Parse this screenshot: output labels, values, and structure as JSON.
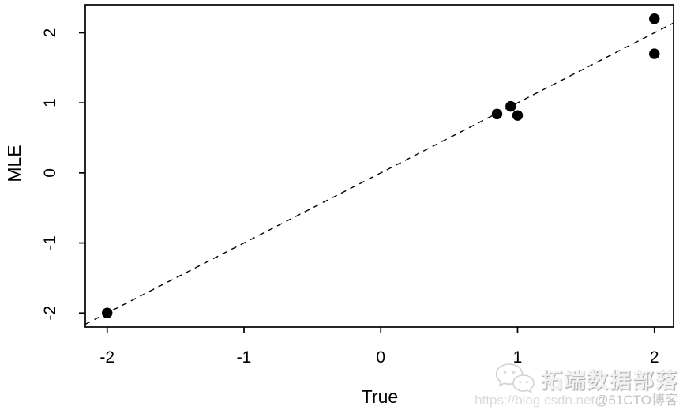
{
  "colors": {
    "foreground": "#000000",
    "background": "#ffffff",
    "point_color": "#000000",
    "watermark_icon_stroke": "#d2d2d2",
    "watermark_url_prefix_color": "#dcdcdc",
    "watermark_url_suffix_color": "#c4c4c4"
  },
  "chart_data": {
    "type": "scatter",
    "title": "",
    "xlabel": "True",
    "ylabel": "MLE",
    "xlim": [
      -2.16,
      2.14
    ],
    "ylim": [
      -2.2,
      2.4
    ],
    "x_ticks": [
      -2,
      -1,
      0,
      1,
      2
    ],
    "y_ticks": [
      -2,
      -1,
      0,
      1,
      2
    ],
    "grid": false,
    "legend": null,
    "points": [
      {
        "x": -2.0,
        "y": -2.0
      },
      {
        "x": 0.85,
        "y": 0.84
      },
      {
        "x": 0.95,
        "y": 0.95
      },
      {
        "x": 1.0,
        "y": 0.82
      },
      {
        "x": 2.0,
        "y": 2.2
      },
      {
        "x": 2.0,
        "y": 1.7
      }
    ],
    "point_style": {
      "shape": "filled-circle",
      "color": "#000000",
      "radius_px": 6.7
    },
    "reference_line": {
      "type": "identity",
      "slope": 1,
      "intercept": 0,
      "style": "dashed",
      "color": "#000000"
    }
  },
  "watermark": {
    "icon": "wechat-icon",
    "brand_text": "拓端数据部落",
    "url_prefix": "https://blog.csdn.net",
    "url_suffix": "@51CTO博客"
  }
}
